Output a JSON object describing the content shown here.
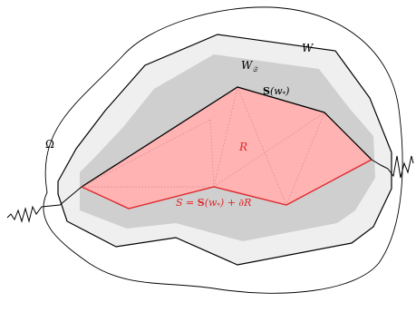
{
  "labels": {
    "omega": "Ω",
    "w": "W",
    "w_sub_main": "W",
    "w_sub_index": "𝔖",
    "s_of_w_bold": "S",
    "s_of_w_rest": "(w",
    "s_of_w_sub": "*",
    "s_of_w_close": ")",
    "r": "R",
    "s_eq": "S = ",
    "s_eq_bold": "S",
    "s_eq_rest": "(w",
    "s_eq_sub": "*",
    "s_eq_tail": ") + ∂R"
  },
  "colors": {
    "outline": "#000000",
    "region_w": "#efefef",
    "region_w_sub": "#cfcfcf",
    "region_r_fill": "#ffb3b3",
    "accent_red": "#e0272b",
    "dotted": "#d08a8a"
  }
}
